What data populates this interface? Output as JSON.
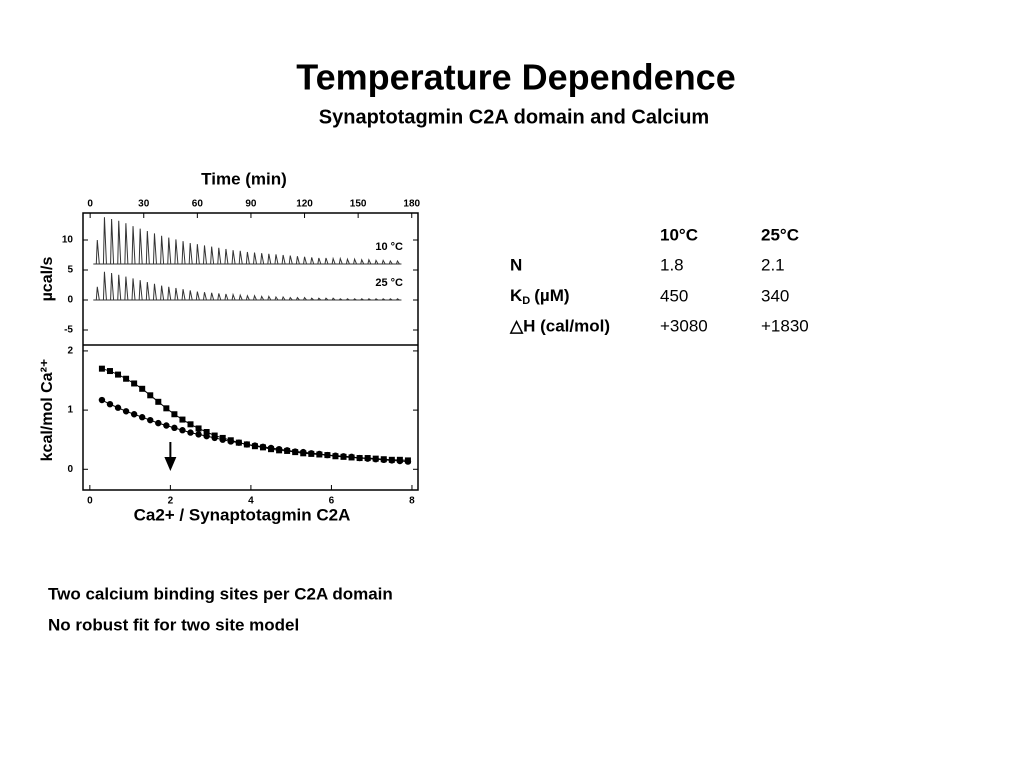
{
  "header": {
    "title": "Temperature Dependence",
    "subtitle": "Synaptotagmin C2A domain and Calcium"
  },
  "chart_data": [
    {
      "type": "spikes",
      "xlabel": "Time (min)",
      "ylabel": "µcal/s",
      "xlim": [
        -4,
        183.5
      ],
      "xticks": [
        0,
        30,
        60,
        90,
        120,
        150,
        180
      ],
      "ylim": [
        -7.5,
        14.5
      ],
      "yticks": [
        -5,
        0,
        5,
        10
      ],
      "x": [
        4,
        8,
        12,
        16,
        20,
        24,
        28,
        32,
        36,
        40,
        44,
        48,
        52,
        56,
        60,
        64,
        68,
        72,
        76,
        80,
        84,
        88,
        92,
        96,
        100,
        104,
        108,
        112,
        116,
        120,
        124,
        128,
        132,
        136,
        140,
        144,
        148,
        152,
        156,
        160,
        164,
        168,
        172
      ],
      "series": [
        {
          "name": "10 °C",
          "color": "#333333",
          "baseline": 6,
          "values": [
            10,
            13.8,
            13.5,
            13.2,
            12.8,
            12.3,
            11.9,
            11.5,
            11.1,
            10.7,
            10.4,
            10.1,
            9.8,
            9.5,
            9.3,
            9.1,
            8.9,
            8.7,
            8.5,
            8.3,
            8.2,
            8.0,
            7.9,
            7.8,
            7.7,
            7.6,
            7.5,
            7.4,
            7.3,
            7.2,
            7.1,
            7.0,
            7.0,
            6.9,
            6.9,
            6.8,
            6.8,
            6.7,
            6.7,
            6.6,
            6.6,
            6.5,
            6.5
          ]
        },
        {
          "name": "25 °C",
          "color": "#333333",
          "baseline": 0,
          "values": [
            2.2,
            4.7,
            4.5,
            4.2,
            3.9,
            3.6,
            3.3,
            3.0,
            2.7,
            2.4,
            2.2,
            2.0,
            1.8,
            1.6,
            1.4,
            1.3,
            1.2,
            1.1,
            1.0,
            0.9,
            0.8,
            0.7,
            0.7,
            0.6,
            0.6,
            0.5,
            0.5,
            0.4,
            0.4,
            0.4,
            0.3,
            0.3,
            0.3,
            0.3,
            0.2,
            0.2,
            0.2,
            0.2,
            0.2,
            0.2,
            0.2,
            0.2,
            0.2
          ]
        }
      ]
    },
    {
      "type": "scatter",
      "xlabel": "Ca2+  / Synaptotagmin C2A",
      "ylabel": "kcal/mol Ca²⁺",
      "xlim": [
        -0.17,
        8.15
      ],
      "xticks": [
        0,
        2,
        4,
        6,
        8
      ],
      "ylim": [
        -0.35,
        2.1
      ],
      "yticks": [
        0,
        1,
        2
      ],
      "annotation": {
        "arrow_x": 2
      },
      "x": [
        0.3,
        0.5,
        0.7,
        0.9,
        1.1,
        1.3,
        1.5,
        1.7,
        1.9,
        2.1,
        2.3,
        2.5,
        2.7,
        2.9,
        3.1,
        3.3,
        3.5,
        3.7,
        3.9,
        4.1,
        4.3,
        4.5,
        4.7,
        4.9,
        5.1,
        5.3,
        5.5,
        5.7,
        5.9,
        6.1,
        6.3,
        6.5,
        6.7,
        6.9,
        7.1,
        7.3,
        7.5,
        7.7,
        7.9
      ],
      "series": [
        {
          "marker": "square",
          "color": "#000000",
          "values": [
            1.7,
            1.66,
            1.6,
            1.53,
            1.45,
            1.36,
            1.25,
            1.14,
            1.03,
            0.93,
            0.84,
            0.76,
            0.69,
            0.63,
            0.57,
            0.53,
            0.49,
            0.45,
            0.42,
            0.39,
            0.37,
            0.34,
            0.32,
            0.31,
            0.29,
            0.27,
            0.26,
            0.25,
            0.24,
            0.22,
            0.21,
            0.2,
            0.19,
            0.19,
            0.18,
            0.17,
            0.16,
            0.16,
            0.15
          ]
        },
        {
          "marker": "circle",
          "color": "#000000",
          "values": [
            1.17,
            1.1,
            1.04,
            0.98,
            0.93,
            0.88,
            0.83,
            0.78,
            0.74,
            0.7,
            0.66,
            0.62,
            0.59,
            0.56,
            0.53,
            0.5,
            0.47,
            0.45,
            0.42,
            0.4,
            0.38,
            0.36,
            0.34,
            0.32,
            0.3,
            0.29,
            0.27,
            0.26,
            0.24,
            0.23,
            0.22,
            0.21,
            0.19,
            0.18,
            0.17,
            0.16,
            0.15,
            0.14,
            0.13
          ]
        }
      ]
    }
  ],
  "table": {
    "columns": [
      "10°C",
      "25°C"
    ],
    "rows": [
      {
        "label": "N",
        "cells": [
          1.8,
          2.1
        ]
      },
      {
        "label": "K",
        "label_sub": "D",
        "label_unit": "(µM)",
        "cells": [
          450,
          340
        ]
      },
      {
        "label": "△H (cal/mol)",
        "cells": [
          {
            "value": 3080,
            "label": "+3080"
          },
          {
            "value": 1830,
            "label": "+1830"
          }
        ]
      }
    ]
  },
  "notes": [
    "Two calcium binding sites per C2A domain",
    "No robust fit for two site model"
  ]
}
